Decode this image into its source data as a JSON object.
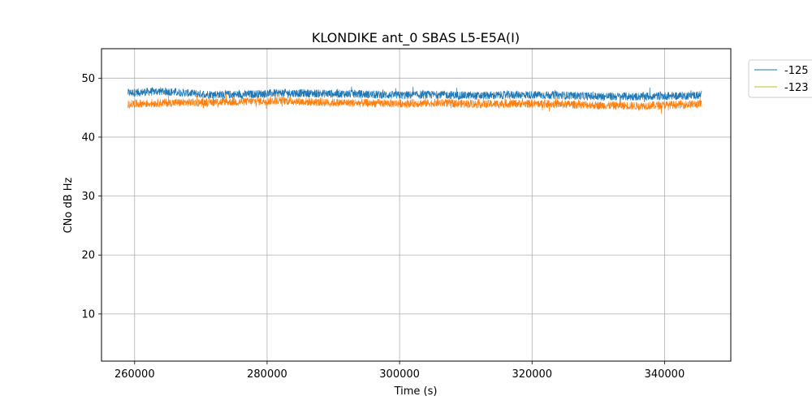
{
  "chart_data": {
    "type": "line",
    "title": "KLONDIKE ant_0 SBAS L5-E5A(I)",
    "xlabel": "Time (s)",
    "ylabel": "CNo dB Hz",
    "xlim": [
      255000,
      350000
    ],
    "ylim": [
      2,
      55
    ],
    "xticks": [
      260000,
      280000,
      300000,
      320000,
      340000
    ],
    "yticks": [
      10,
      20,
      30,
      40,
      50
    ],
    "grid": true,
    "legend_position": "outside-top-right",
    "series": [
      {
        "name": "-125",
        "color": "#1f77b4",
        "x": [
          259000,
          264000,
          270000,
          276000,
          282000,
          288000,
          294000,
          300000,
          306000,
          312000,
          318000,
          324000,
          330000,
          336000,
          342000,
          345600
        ],
        "y": [
          47.5,
          47.8,
          47.3,
          47.2,
          47.5,
          47.4,
          47.3,
          47.1,
          47.2,
          47.0,
          47.2,
          47.1,
          46.9,
          46.9,
          47.0,
          47.1
        ],
        "noise": 0.7
      },
      {
        "name": "-123",
        "color": "#ff7f0e",
        "legend_color": "#bcbd22",
        "x": [
          259000,
          264000,
          270000,
          276000,
          282000,
          288000,
          294000,
          300000,
          306000,
          312000,
          318000,
          324000,
          330000,
          336000,
          342000,
          345600
        ],
        "y": [
          45.6,
          45.8,
          45.9,
          46.0,
          46.2,
          45.9,
          45.8,
          45.7,
          45.8,
          45.6,
          45.7,
          45.6,
          45.4,
          45.3,
          45.5,
          45.6
        ],
        "noise": 0.7
      }
    ]
  }
}
